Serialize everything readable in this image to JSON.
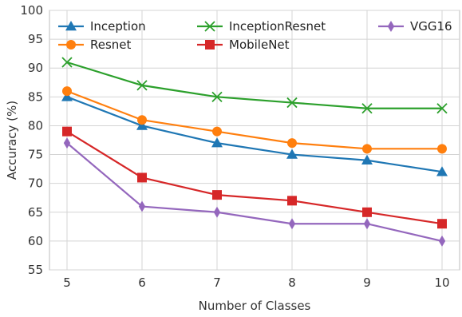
{
  "chart_data": {
    "type": "line",
    "title": "",
    "xlabel": "Number of Classes",
    "ylabel": "Accuracy (%)",
    "x": [
      5,
      6,
      7,
      8,
      9,
      10
    ],
    "xlim": [
      5,
      10
    ],
    "ylim": [
      55,
      100
    ],
    "yticks": [
      55,
      60,
      65,
      70,
      75,
      80,
      85,
      90,
      95,
      100
    ],
    "grid": true,
    "legend_position": "top",
    "series": [
      {
        "name": "Inception",
        "color": "#1f77b4",
        "marker": "triangle",
        "values": [
          85,
          80,
          77,
          75,
          74,
          72
        ]
      },
      {
        "name": "Resnet",
        "color": "#ff7f0e",
        "marker": "circle",
        "values": [
          86,
          81,
          79,
          77,
          76,
          76
        ]
      },
      {
        "name": "InceptionResnet",
        "color": "#2ca02c",
        "marker": "x",
        "values": [
          91,
          87,
          85,
          84,
          83,
          83
        ]
      },
      {
        "name": "MobileNet",
        "color": "#d62728",
        "marker": "square",
        "values": [
          79,
          71,
          68,
          67,
          65,
          63
        ]
      },
      {
        "name": "VGG16",
        "color": "#9467bd",
        "marker": "diamond",
        "values": [
          77,
          66,
          65,
          63,
          63,
          60
        ]
      }
    ]
  }
}
